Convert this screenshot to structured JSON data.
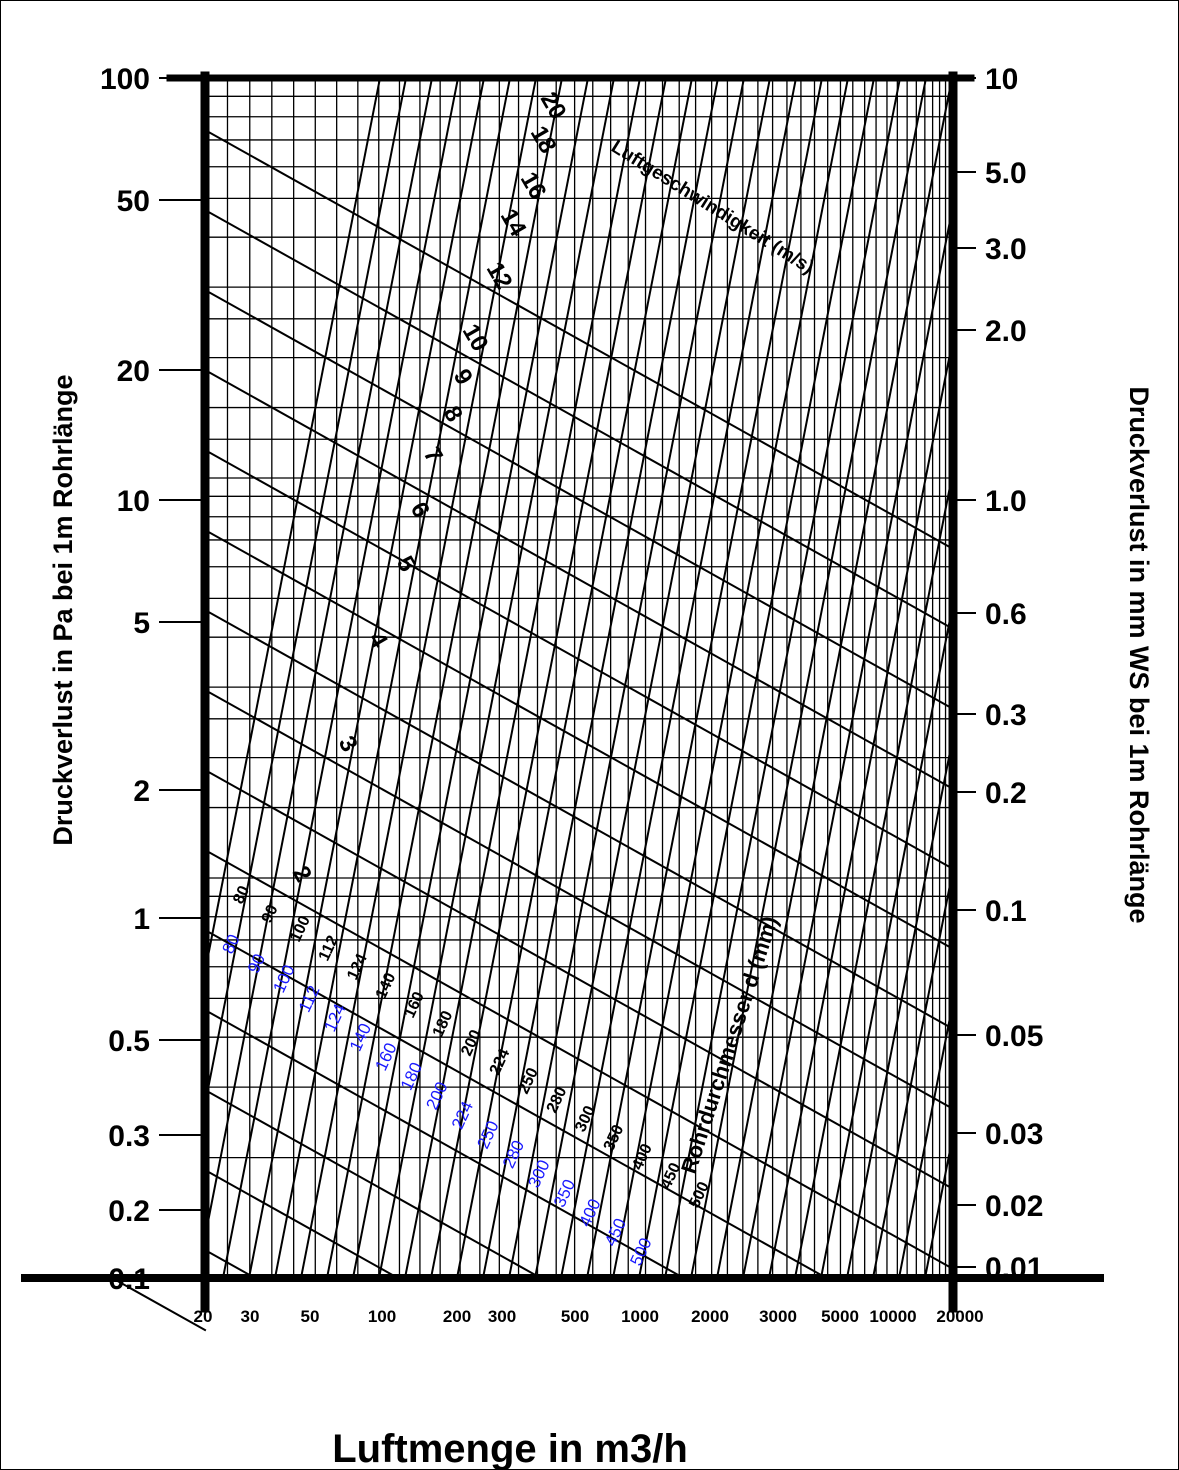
{
  "chart_data": {
    "type": "line",
    "title": "",
    "xlabel": "Luftmenge in m3/h",
    "ylabel_left": "Druckverlust in Pa bei 1m Rohrlänge",
    "ylabel_right": "Druckverlust in mm WS bei 1m Rohrlänge",
    "y_scale": "log",
    "ylim_pa": [
      0.1,
      100
    ],
    "ylim_mmws": [
      0.01,
      10
    ],
    "y_ticks_left": [
      "100",
      "50",
      "20",
      "10",
      "5",
      "2",
      "1",
      "0.5",
      "0.3",
      "0.2",
      "0.1"
    ],
    "y_ticks_right": [
      "10",
      "5.0",
      "3.0",
      "2.0",
      "1.0",
      "0.6",
      "0.3",
      "0.2",
      "0.1",
      "0.05",
      "0.03",
      "0.02",
      "0.01"
    ],
    "x_ticks": [
      "20",
      "30",
      "50",
      "100",
      "200",
      "300",
      "500",
      "1000",
      "2000",
      "3000",
      "5000",
      "10000",
      "20000"
    ],
    "velocity_label": "Luftgeschwindigkeit (m/s)",
    "velocity_values": [
      "2",
      "3",
      "4",
      "5",
      "6",
      "7",
      "8",
      "9",
      "10",
      "12",
      "14",
      "16",
      "18",
      "20"
    ],
    "diameter_label": "Rohrdurchmesser d (mm)",
    "diameter_values_black": [
      "80",
      "90",
      "100",
      "112",
      "124",
      "140",
      "160",
      "180",
      "200",
      "224",
      "250",
      "280",
      "300",
      "350",
      "400",
      "450",
      "500"
    ],
    "diameter_values_blue": [
      "80",
      "90",
      "100",
      "112",
      "124",
      "140",
      "160",
      "180",
      "200",
      "224",
      "250",
      "280",
      "300",
      "350",
      "400",
      "450",
      "500"
    ],
    "grid": true,
    "colors": {
      "lines": "#000000",
      "blue_labels": "#1a1aff",
      "background": "#ffffff"
    }
  }
}
